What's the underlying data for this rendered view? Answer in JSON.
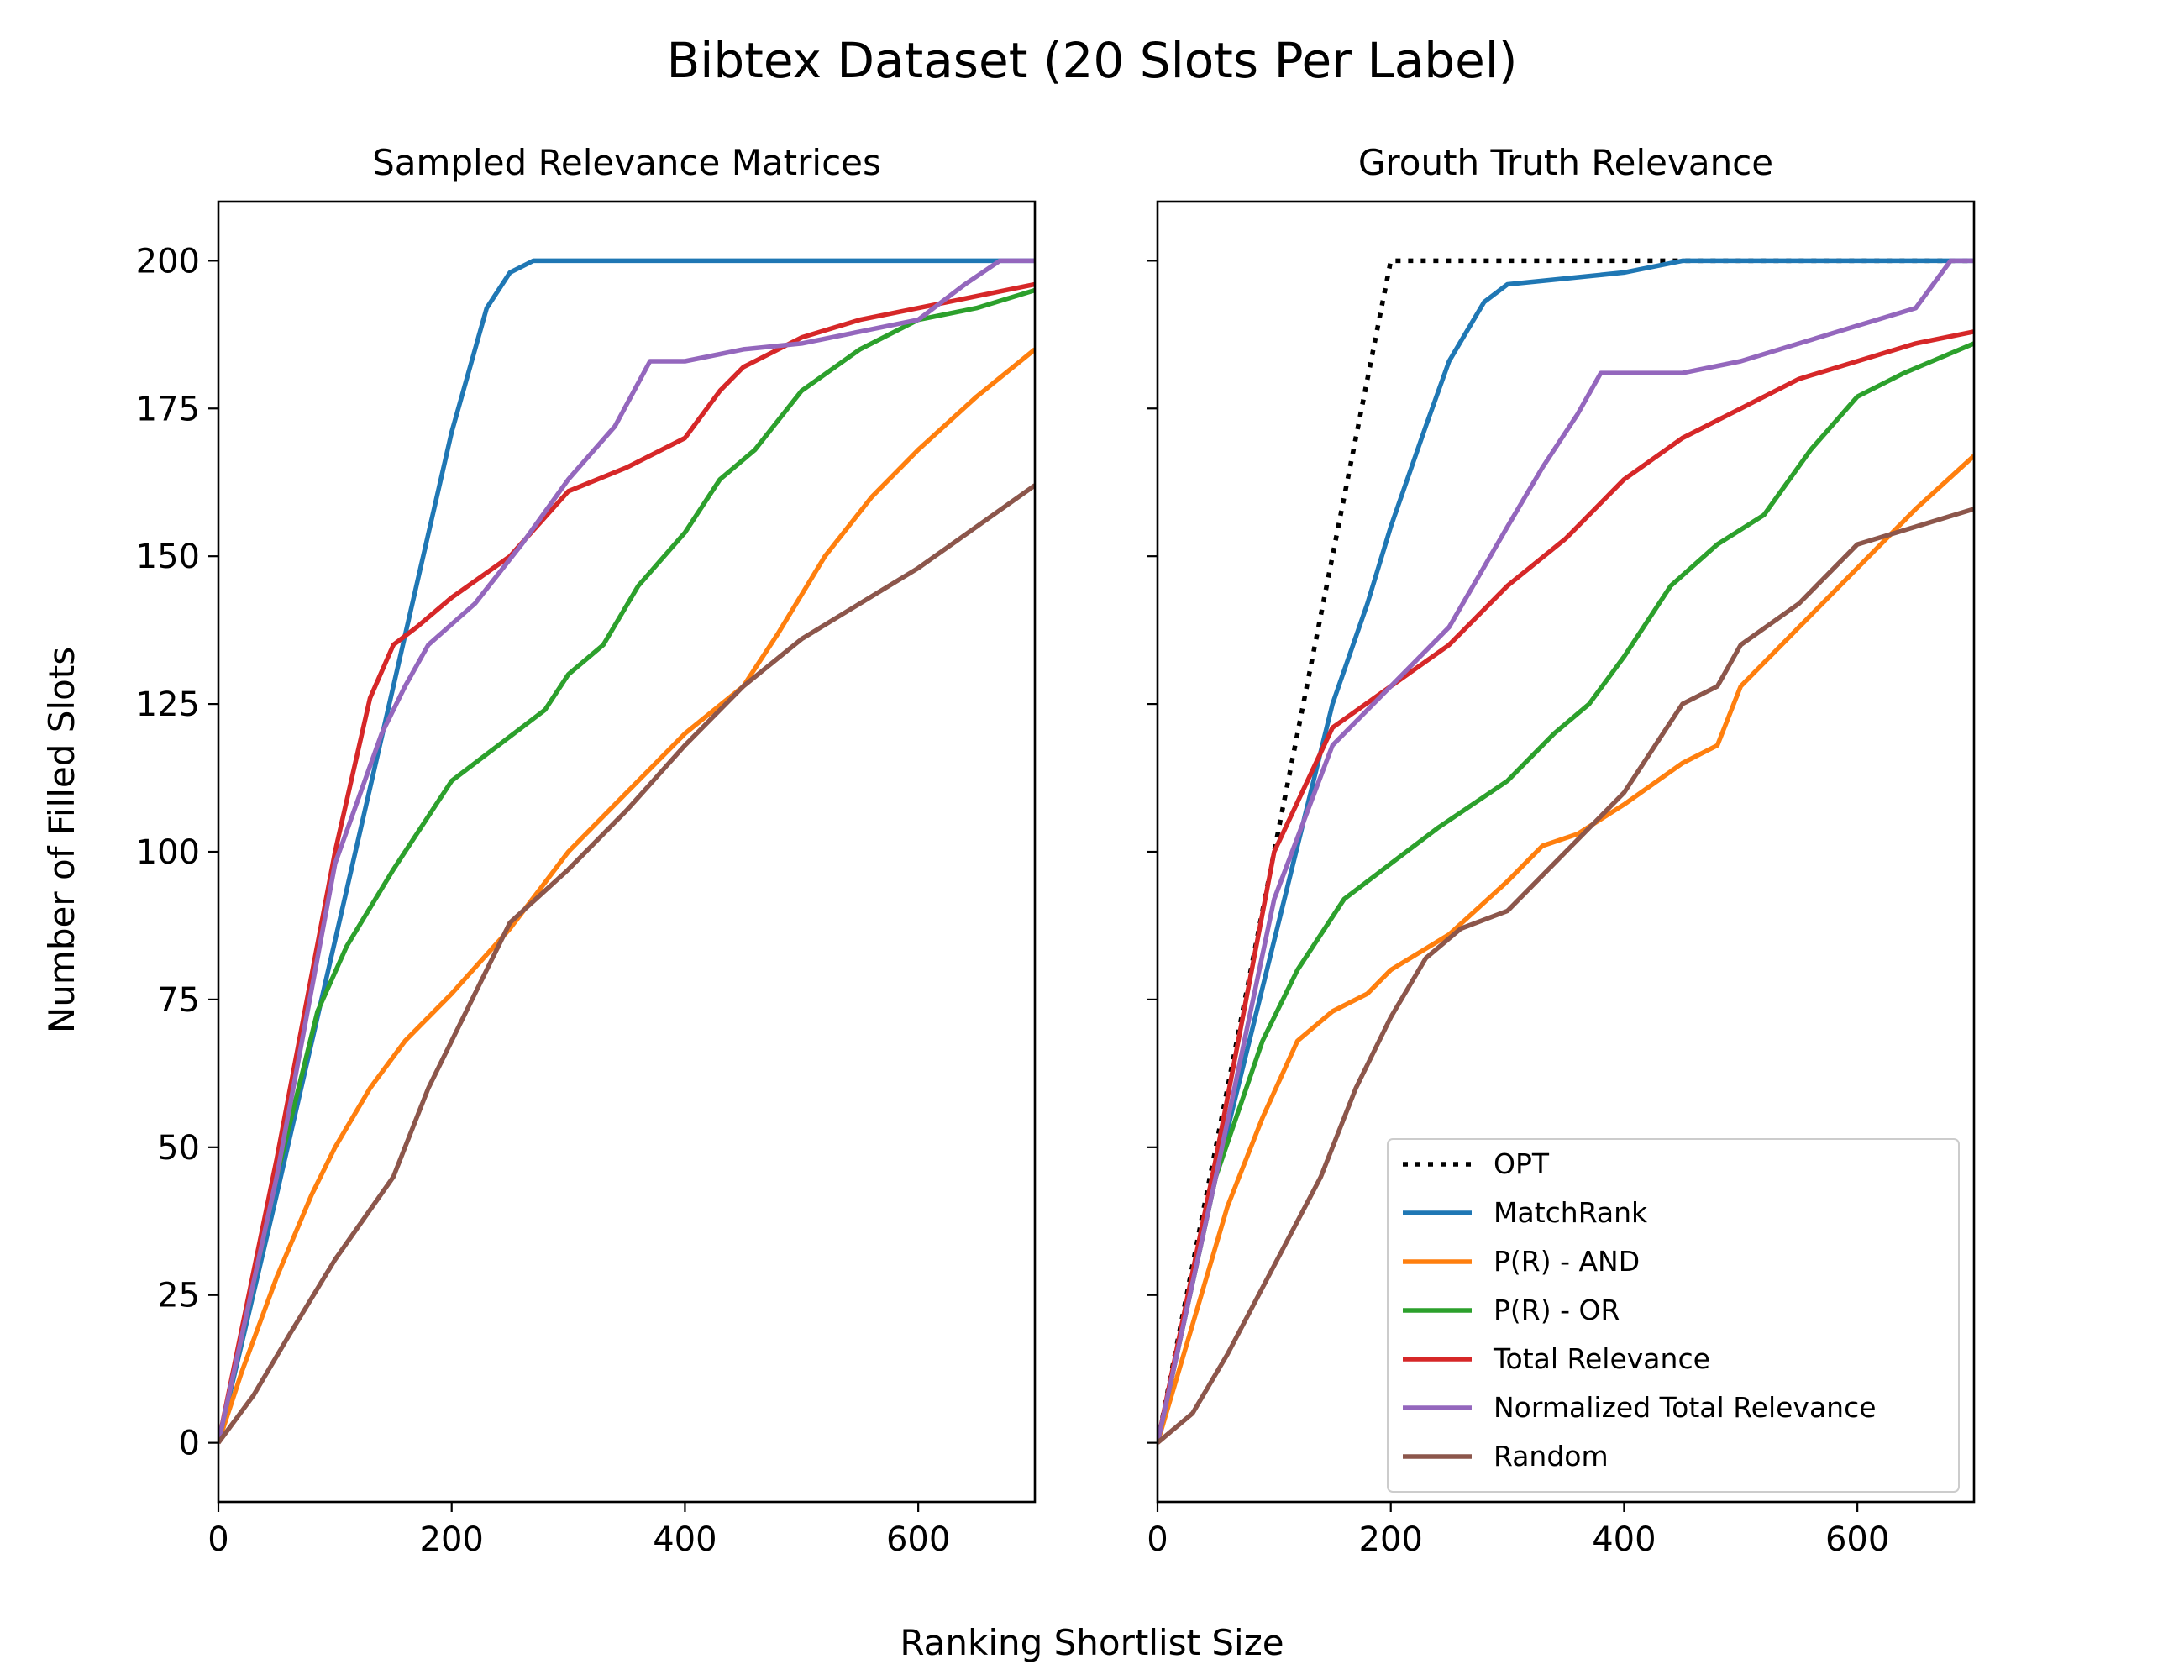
{
  "figure": {
    "suptitle": "Bibtex Dataset (20 Slots Per Label)",
    "xlabel": "Ranking Shortlist Size",
    "ylabel": "Number of Filled Slots"
  },
  "colors": {
    "OPT": "#000000",
    "MatchRank": "#1f77b4",
    "P(R) - AND": "#ff7f0e",
    "P(R) - OR": "#2ca02c",
    "Total Relevance": "#d62728",
    "Normalized Total Relevance": "#9467bd",
    "Random": "#8c564b"
  },
  "legend": {
    "placement": "lower right of right panel",
    "entries": [
      "OPT",
      "MatchRank",
      "P(R) - AND",
      "P(R) - OR",
      "Total Relevance",
      "Normalized Total Relevance",
      "Random"
    ]
  },
  "chart_data": [
    {
      "type": "line",
      "title": "Sampled Relevance Matrices",
      "xlim": [
        0,
        700
      ],
      "ylim": [
        -10,
        210
      ],
      "xticks": [
        0,
        200,
        400,
        600
      ],
      "yticks": [
        0,
        25,
        50,
        75,
        100,
        125,
        150,
        175,
        200
      ],
      "series": [
        {
          "name": "MatchRank",
          "style": "solid",
          "x": [
            0,
            50,
            100,
            150,
            200,
            230,
            250,
            270,
            290,
            700
          ],
          "y": [
            0,
            42,
            85,
            128,
            171,
            192,
            198,
            200,
            200,
            200
          ]
        },
        {
          "name": "P(R) - AND",
          "style": "solid",
          "x": [
            0,
            20,
            50,
            80,
            100,
            130,
            160,
            200,
            250,
            300,
            350,
            400,
            450,
            480,
            520,
            560,
            600,
            650,
            700
          ],
          "y": [
            0,
            12,
            28,
            42,
            50,
            60,
            68,
            76,
            87,
            100,
            110,
            120,
            128,
            137,
            150,
            160,
            168,
            177,
            185
          ]
        },
        {
          "name": "P(R) - OR",
          "style": "solid",
          "x": [
            0,
            50,
            85,
            110,
            150,
            200,
            240,
            280,
            300,
            330,
            360,
            400,
            430,
            460,
            500,
            550,
            600,
            650,
            700
          ],
          "y": [
            0,
            45,
            73,
            84,
            97,
            112,
            118,
            124,
            130,
            135,
            145,
            154,
            163,
            168,
            178,
            185,
            190,
            192,
            195
          ]
        },
        {
          "name": "Total Relevance",
          "style": "solid",
          "x": [
            0,
            50,
            100,
            130,
            150,
            170,
            200,
            250,
            300,
            350,
            400,
            430,
            450,
            500,
            550,
            600,
            650,
            700
          ],
          "y": [
            0,
            48,
            100,
            126,
            135,
            138,
            143,
            150,
            161,
            165,
            170,
            178,
            182,
            187,
            190,
            192,
            194,
            196
          ]
        },
        {
          "name": "Normalized Total Relevance",
          "style": "solid",
          "x": [
            0,
            50,
            100,
            140,
            160,
            180,
            220,
            260,
            300,
            340,
            370,
            400,
            450,
            500,
            550,
            600,
            640,
            670,
            700
          ],
          "y": [
            0,
            45,
            98,
            120,
            128,
            135,
            142,
            152,
            163,
            172,
            183,
            183,
            185,
            186,
            188,
            190,
            196,
            200,
            200
          ]
        },
        {
          "name": "Random",
          "style": "solid",
          "x": [
            0,
            30,
            60,
            100,
            150,
            180,
            200,
            250,
            300,
            350,
            400,
            450,
            500,
            550,
            600,
            650,
            700
          ],
          "y": [
            0,
            8,
            18,
            31,
            45,
            60,
            68,
            88,
            97,
            107,
            118,
            128,
            136,
            142,
            148,
            155,
            162
          ]
        }
      ]
    },
    {
      "type": "line",
      "title": "Grouth Truth Relevance",
      "xlim": [
        0,
        700
      ],
      "ylim": [
        -10,
        210
      ],
      "xticks": [
        0,
        200,
        400,
        600
      ],
      "yticks": [
        0,
        25,
        50,
        75,
        100,
        125,
        150,
        175,
        200
      ],
      "series": [
        {
          "name": "OPT",
          "style": "dotted",
          "x": [
            0,
            200,
            700
          ],
          "y": [
            0,
            200,
            200
          ]
        },
        {
          "name": "MatchRank",
          "style": "solid",
          "x": [
            0,
            50,
            100,
            150,
            180,
            200,
            230,
            250,
            280,
            300,
            350,
            400,
            450,
            700
          ],
          "y": [
            0,
            45,
            85,
            125,
            142,
            155,
            172,
            183,
            193,
            196,
            197,
            198,
            200,
            200
          ]
        },
        {
          "name": "P(R) - AND",
          "style": "solid",
          "x": [
            0,
            30,
            60,
            90,
            120,
            150,
            180,
            200,
            250,
            300,
            330,
            360,
            400,
            450,
            480,
            500,
            550,
            600,
            650,
            700
          ],
          "y": [
            0,
            20,
            40,
            55,
            68,
            73,
            76,
            80,
            86,
            95,
            101,
            103,
            108,
            115,
            118,
            128,
            138,
            148,
            158,
            167
          ]
        },
        {
          "name": "P(R) - OR",
          "style": "solid",
          "x": [
            0,
            50,
            90,
            120,
            160,
            200,
            240,
            300,
            340,
            370,
            400,
            440,
            480,
            520,
            560,
            600,
            640,
            700
          ],
          "y": [
            0,
            45,
            68,
            80,
            92,
            98,
            104,
            112,
            120,
            125,
            133,
            145,
            152,
            157,
            168,
            177,
            181,
            186
          ]
        },
        {
          "name": "Total Relevance",
          "style": "solid",
          "x": [
            0,
            50,
            100,
            150,
            200,
            250,
            300,
            350,
            400,
            450,
            500,
            550,
            600,
            650,
            700
          ],
          "y": [
            0,
            48,
            100,
            121,
            128,
            135,
            145,
            153,
            163,
            170,
            175,
            180,
            183,
            186,
            188
          ]
        },
        {
          "name": "Normalized Total Relevance",
          "style": "solid",
          "x": [
            0,
            50,
            100,
            150,
            200,
            250,
            300,
            330,
            360,
            380,
            400,
            450,
            500,
            550,
            600,
            650,
            680,
            700
          ],
          "y": [
            0,
            45,
            92,
            118,
            128,
            138,
            155,
            165,
            174,
            181,
            181,
            181,
            183,
            186,
            189,
            192,
            200,
            200
          ]
        },
        {
          "name": "Random",
          "style": "solid",
          "x": [
            0,
            30,
            60,
            100,
            140,
            170,
            200,
            230,
            260,
            300,
            350,
            400,
            450,
            480,
            500,
            550,
            600,
            650,
            700
          ],
          "y": [
            0,
            5,
            15,
            30,
            45,
            60,
            72,
            82,
            87,
            90,
            100,
            110,
            125,
            128,
            135,
            142,
            152,
            155,
            158
          ]
        }
      ]
    }
  ]
}
